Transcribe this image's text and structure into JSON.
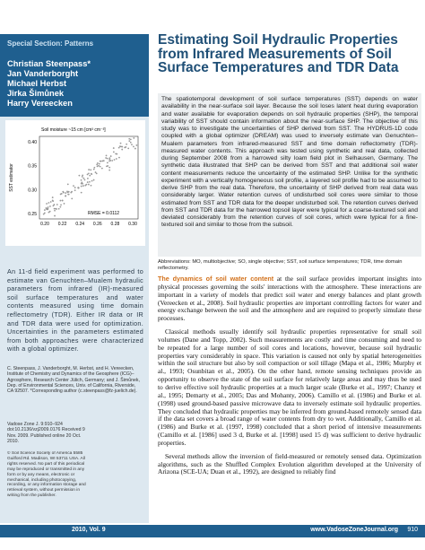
{
  "left": {
    "section": "Special Section: Patterns",
    "authors": [
      "Christian Steenpass*",
      "Jan Vanderborght",
      "Michael Herbst",
      "Jirka Šimůnek",
      "Harry Vereecken"
    ],
    "figure": {
      "x_label": "Soil moisture ~15 cm [cm³ cm⁻³]",
      "y_label": "SST estimator",
      "xticks": [
        "0.20",
        "0.22",
        "0.24",
        "0.26",
        "0.28",
        "0.30"
      ],
      "yticks": [
        "0.40",
        "0.35",
        "0.30",
        "0.25"
      ],
      "annotation": "RMSE = 0.0112"
    },
    "summary": "An 11-d field experiment was performed to estimate van Genuchten–Mualem hydraulic parameters from infrared (IR)-measured soil surface temperatures and water contents measured using time domain reflectometry (TDR). Either IR data or IR and TDR data were used for optimization. Uncertainties in the parameters estimated from both approaches were characterized with a global optimizer.",
    "affiliation": "C. Steenpass, J. Vanderborght, M. Herbst, and H. Vereecken, Institute of Chemistry and Dynamics of the Geosphere (ICG)–Agrosphere, Research Center Jülich, Germany; and J. Šimůnek, Dep. of Environmental Sciences, Univ. of California, Riverside, CA 92507. *Corresponding author (c.steenpass@fz-juelich.de).",
    "citation": "Vadose Zone J. 9:910–924 doi:10.2136/vzj2009.0176 Received 9 Nov. 2009. Published online 20 Oct. 2010.",
    "copyright": "© Soil Science Society of America 5585 Guilford Rd. Madison, WI 53711 USA. All rights reserved. No part of this periodical may be reproduced or transmitted in any form or by any means, electronic or mechanical, including photocopying, recording, or any information storage and retrieval system, without permission in writing from the publisher."
  },
  "title": "Estimating Soil Hydraulic Properties from Infrared Measurements of Soil Surface Temperatures and TDR Data",
  "abstract": "The spatiotemporal development of soil surface temperatures (SST) depends on water availability in the near-surface soil layer. Because the soil loses latent heat during evaporation and water available for evaporation depends on soil hydraulic properties (SHP), the temporal variability of SST should contain information about the near-surface SHP. The objective of this study was to investigate the uncertainties of SHP derived from SST. The HYDRUS-1D code coupled with a global optimizer (DREAM) was used to inversely estimate van Genuchten–Mualem parameters from infrared-measured SST and time domain reflectometry (TDR)-measured water contents. This approach was tested using synthetic and real data, collected during September 2008 from a harrowed silty loam field plot in Selhausen, Germany. The synthetic data illustrated that SHP can be derived from SST and that additional soil water content measurements reduce the uncertainty of the estimated SHP. Unlike for the synthetic experiment with a vertically homogeneous soil profile, a layered soil profile had to be assumed to derive SHP from the real data. Therefore, the uncertainty of SHP derived from real data was considerably larger. Water retention curves of undisturbed soil cores were similar to those estimated from SST and TDR data for the deeper undisturbed soil. The retention curves derived from SST and TDR data for the harrowed topsoil layer were typical for a coarse-textured soil and deviated considerably from the retention curves of soil cores, which were typical for a fine-textured soil and similar to those from the subsoil.",
  "abbreviations": "Abbreviations: MO, multiobjective; SO, single objective; SST, soil surface temperatures; TDR, time domain reflectometry.",
  "body": {
    "lead": "The dynamics of soil water content",
    "paragraphs": [
      " at the soil surface provides important insights into physical processes governing the soils' interactions with the atmosphere. These interactions are important in a variety of models that predict soil water and energy balances and plant growth (Vereecken et al., 2008). Soil hydraulic properties are important controlling factors for water and energy exchange between the soil and the atmosphere and are required to properly simulate these processes.",
      "Classical methods usually identify soil hydraulic properties representative for small soil volumes (Dane and Topp, 2002). Such measurements are costly and time consuming and need to be repeated for a large number of soil cores and locations, however, because soil hydraulic properties vary considerably in space. This variation is caused not only by spatial heterogeneities within the soil structure but also by soil compaction or soil tillage (Mapa et al., 1986; Murphy et al., 1993; Osunbitan et al., 2005). On the other hand, remote sensing techniques provide an opportunity to observe the state of the soil surface for relatively large areas and may thus be used to derive effective soil hydraulic properties at a much larger scale (Burke et al., 1997; Chanzy et al., 1995; Demarty et al., 2005; Das and Mohanty, 2006). Camillo et al. (1986) and Burke et al. (1998) used ground-based passive microwave data to inversely estimate soil hydraulic properties. They concluded that hydraulic properties may be inferred from ground-based remotely sensed data if the data set covers a broad range of water contents from dry to wet. Additionally, Camillo et al. (1986) and Burke et al. (1997, 1998) concluded that a short period of intensive measurements (Camillo et al. [1986] used 3 d, Burke et al. [1998] used 15 d) was sufficient to derive hydraulic properties.",
      "Several methods allow the inversion of field-measured or remotely sensed data. Optimization algorithms, such as the Shuffled Complex Evolution algorithm developed at the University of Arizona (SCE-UA; Duan et al., 1992), are designed to reliably find"
    ]
  },
  "footer": {
    "volume": "2010, Vol. 9",
    "url": "www.VadoseZoneJournal.org",
    "page": "910"
  }
}
